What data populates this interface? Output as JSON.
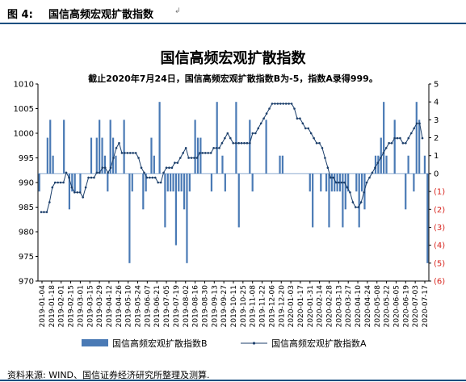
{
  "figure": {
    "label": "图 4:",
    "title": "国信高频宏观扩散指数",
    "title_mark": "↲",
    "source": "资料来源: WIND、国信证券经济研究所整理及测算.",
    "accent_color": "#1c4f80"
  },
  "chart_data": {
    "type": "bar+line",
    "title": "国信高频宏观扩散指数",
    "subtitle": "截止2020年7月24日，国信高频宏观扩散指数B为-5，指数A录得999。",
    "left_axis": {
      "min": 970,
      "max": 1010,
      "step": 5,
      "ticks": [
        "970",
        "975",
        "980",
        "985",
        "990",
        "995",
        "1000",
        "1005",
        "1010"
      ]
    },
    "right_axis": {
      "min": -6,
      "max": 5,
      "step": 1,
      "ticks": [
        "(6)",
        "(5)",
        "(4)",
        "(3)",
        "(2)",
        "(1)",
        "0",
        "1",
        "2",
        "3",
        "4",
        "5"
      ],
      "positive_color": "#000000",
      "negative_color": "#d8261f"
    },
    "x_tick_labels": [
      "2019-01-04",
      "2019-01-18",
      "2019-02-01",
      "2019-02-15",
      "2019-03-01",
      "2019-03-15",
      "2019-03-29",
      "2019-04-12",
      "2019-04-26",
      "2019-05-10",
      "2019-05-24",
      "2019-06-07",
      "2019-06-21",
      "2019-07-05",
      "2019-07-19",
      "2019-08-02",
      "2019-08-16",
      "2019-08-30",
      "2019-09-13",
      "2019-09-27",
      "2019-10-11",
      "2019-10-25",
      "2019-11-08",
      "2019-11-22",
      "2019-12-06",
      "2019-12-20",
      "2020-01-03",
      "2020-01-17",
      "2020-01-31",
      "2020-02-14",
      "2020-02-28",
      "2020-03-13",
      "2020-03-27",
      "2020-04-10",
      "2020-04-24",
      "2020-05-08",
      "2020-05-22",
      "2020-06-05",
      "2020-06-19",
      "2020-07-03",
      "2020-07-17"
    ],
    "series": [
      {
        "name": "国信高频宏观扩散指数B",
        "type": "bar",
        "axis": "right",
        "color": "#4a7ab5",
        "values": [
          -1,
          0,
          0,
          2,
          3,
          1,
          0,
          0,
          0,
          3,
          0,
          -2,
          -1,
          -1,
          0,
          -1,
          0,
          0,
          0,
          2,
          0,
          2,
          3,
          2,
          1,
          -1,
          3,
          2,
          1,
          0,
          0,
          3,
          0,
          -5,
          -1,
          0,
          0,
          0,
          -2,
          -1,
          0,
          2,
          1,
          0,
          4,
          0,
          -3,
          -1,
          -1,
          -1,
          -4,
          -1,
          -1,
          -2,
          -5,
          -1,
          0,
          3,
          2,
          2,
          0,
          0,
          0,
          -1,
          0,
          4,
          0,
          1,
          -1,
          0,
          0,
          0,
          4,
          -3,
          0,
          0,
          0,
          3,
          -1,
          0,
          0,
          0,
          0,
          3,
          0,
          0,
          0,
          0,
          1,
          1,
          0,
          0,
          0,
          0,
          0,
          0,
          0,
          0,
          0,
          -1,
          -3,
          0,
          0,
          -1,
          0,
          -1,
          -3,
          -1,
          -1,
          -1,
          -1,
          -3,
          -2,
          -1,
          0,
          0,
          -1,
          -3,
          -1,
          -2,
          0,
          0,
          0,
          1,
          1,
          2,
          4,
          1,
          0,
          0,
          3,
          0,
          0,
          0,
          -2,
          1,
          0,
          -1,
          4,
          3,
          0,
          1,
          -5
        ]
      },
      {
        "name": "国信高频宏观扩散指数A",
        "type": "line",
        "axis": "left",
        "color": "#1c3f6b",
        "values": [
          984,
          984,
          984,
          986,
          989,
          990,
          990,
          990,
          990,
          992,
          991,
          989,
          988,
          988,
          988,
          987,
          989,
          991,
          991,
          991,
          992,
          992,
          993,
          993,
          992,
          993,
          995,
          997,
          998,
          996,
          996,
          996,
          996,
          996,
          996,
          995,
          993,
          992,
          991,
          991,
          991,
          991,
          990,
          990,
          992,
          993,
          993,
          993,
          994,
          994,
          995,
          996,
          997,
          995,
          995,
          995,
          995,
          996,
          996,
          996,
          996,
          996,
          997,
          997,
          997,
          998,
          999,
          1000,
          999,
          998,
          998,
          998,
          998,
          998,
          998,
          998,
          1000,
          1000,
          1001,
          1002,
          1003,
          1004,
          1005,
          1006,
          1006,
          1006,
          1006,
          1006,
          1006,
          1006,
          1006,
          1005,
          1003,
          1003,
          1002,
          1001,
          1001,
          1000,
          999,
          998,
          998,
          997,
          995,
          993,
          991,
          991,
          990,
          990,
          990,
          990,
          989,
          988,
          986,
          985,
          985,
          986,
          988,
          990,
          991,
          992,
          993,
          994,
          995,
          996,
          997,
          998,
          998,
          999,
          999,
          999,
          998,
          998,
          999,
          1000,
          1001,
          1002,
          1002,
          999
        ]
      }
    ],
    "legend": {
      "position": "bottom",
      "entries": [
        "国信高频宏观扩散指数B",
        "国信高频宏观扩散指数A"
      ]
    },
    "grid": false
  }
}
